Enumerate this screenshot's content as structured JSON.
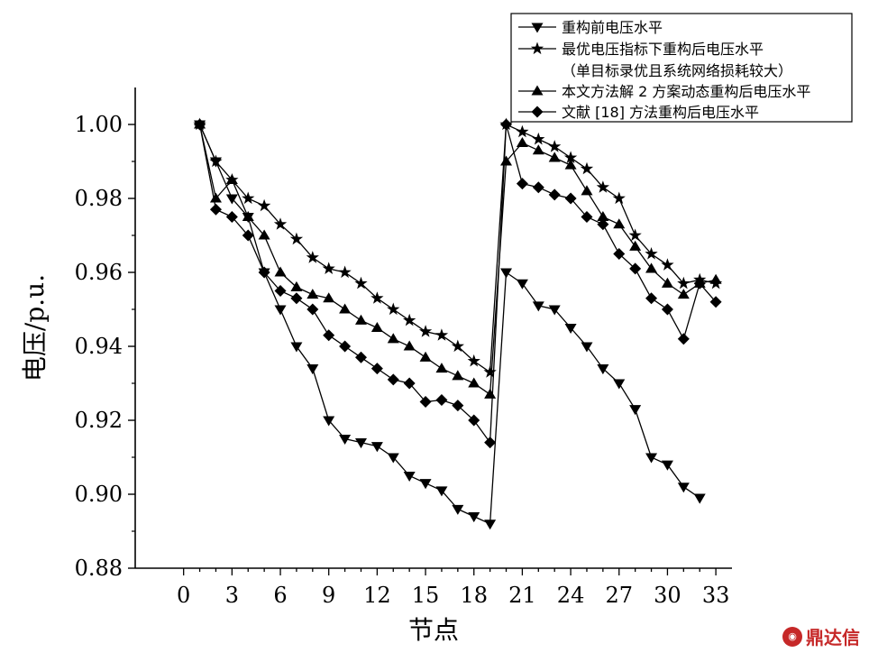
{
  "watermark": {
    "text": "鼎达信",
    "color": "#c62828"
  },
  "chart_data": {
    "type": "line",
    "xlabel": "节点",
    "ylabel": "电压/p.u.",
    "xlim": [
      -3,
      34
    ],
    "ylim": [
      0.88,
      1.01
    ],
    "xticks": [
      0,
      3,
      6,
      9,
      12,
      15,
      18,
      21,
      24,
      27,
      30,
      33
    ],
    "yticks": [
      0.88,
      0.9,
      0.92,
      0.94,
      0.96,
      0.98,
      1.0
    ],
    "ytick_labels": [
      "0.88",
      "0.90",
      "0.92",
      "0.94",
      "0.96",
      "0.98",
      "1.00"
    ],
    "grid": false,
    "legend_position": "top-right",
    "series": [
      {
        "name": "重构前电压水平",
        "marker": "triangle-down",
        "x": [
          1,
          2,
          3,
          4,
          5,
          6,
          7,
          8,
          9,
          10,
          11,
          12,
          13,
          14,
          15,
          16,
          17,
          18,
          19,
          20,
          21,
          22,
          23,
          24,
          25,
          26,
          27,
          28,
          29,
          30,
          31,
          32
        ],
        "values": [
          1.0,
          0.99,
          0.98,
          0.975,
          0.96,
          0.95,
          0.94,
          0.934,
          0.92,
          0.915,
          0.914,
          0.913,
          0.91,
          0.905,
          0.903,
          0.901,
          0.896,
          0.894,
          0.892,
          0.96,
          0.957,
          0.951,
          0.95,
          0.945,
          0.94,
          0.934,
          0.93,
          0.923,
          0.91,
          0.908,
          0.902,
          0.899
        ]
      },
      {
        "name": "最优电压指标下重构后电压水平",
        "name_line2": "（单目标录优且系统网络损耗较大）",
        "marker": "star",
        "x": [
          1,
          2,
          3,
          4,
          5,
          6,
          7,
          8,
          9,
          10,
          11,
          12,
          13,
          14,
          15,
          16,
          17,
          18,
          19,
          20,
          21,
          22,
          23,
          24,
          25,
          26,
          27,
          28,
          29,
          30,
          31,
          32,
          33
        ],
        "values": [
          1.0,
          0.99,
          0.985,
          0.98,
          0.978,
          0.973,
          0.969,
          0.964,
          0.961,
          0.96,
          0.957,
          0.953,
          0.95,
          0.947,
          0.944,
          0.943,
          0.94,
          0.936,
          0.933,
          1.0,
          0.998,
          0.996,
          0.994,
          0.991,
          0.988,
          0.983,
          0.98,
          0.97,
          0.965,
          0.962,
          0.957,
          0.958,
          0.957
        ]
      },
      {
        "name": "本文方法解 2 方案动态重构后电压水平",
        "marker": "triangle-up",
        "x": [
          1,
          2,
          3,
          4,
          5,
          6,
          7,
          8,
          9,
          10,
          11,
          12,
          13,
          14,
          15,
          16,
          17,
          18,
          19,
          20,
          21,
          22,
          23,
          24,
          25,
          26,
          27,
          28,
          29,
          30,
          31,
          32,
          33
        ],
        "values": [
          1.0,
          0.98,
          0.985,
          0.975,
          0.97,
          0.96,
          0.956,
          0.954,
          0.953,
          0.95,
          0.947,
          0.945,
          0.942,
          0.94,
          0.937,
          0.934,
          0.932,
          0.93,
          0.927,
          0.99,
          0.995,
          0.993,
          0.991,
          0.989,
          0.982,
          0.975,
          0.973,
          0.967,
          0.961,
          0.957,
          0.954,
          0.957,
          0.958
        ]
      },
      {
        "name": "文献 [18] 方法重构后电压水平",
        "marker": "diamond",
        "x": [
          1,
          2,
          3,
          4,
          5,
          6,
          7,
          8,
          9,
          10,
          11,
          12,
          13,
          14,
          15,
          16,
          17,
          18,
          19,
          20,
          21,
          22,
          23,
          24,
          25,
          26,
          27,
          28,
          29,
          30,
          31,
          32,
          33
        ],
        "values": [
          1.0,
          0.977,
          0.975,
          0.97,
          0.96,
          0.955,
          0.953,
          0.95,
          0.943,
          0.94,
          0.937,
          0.934,
          0.931,
          0.93,
          0.925,
          0.9255,
          0.924,
          0.92,
          0.914,
          1.0,
          0.984,
          0.983,
          0.981,
          0.98,
          0.975,
          0.973,
          0.965,
          0.961,
          0.953,
          0.95,
          0.942,
          0.957,
          0.952
        ]
      }
    ]
  }
}
